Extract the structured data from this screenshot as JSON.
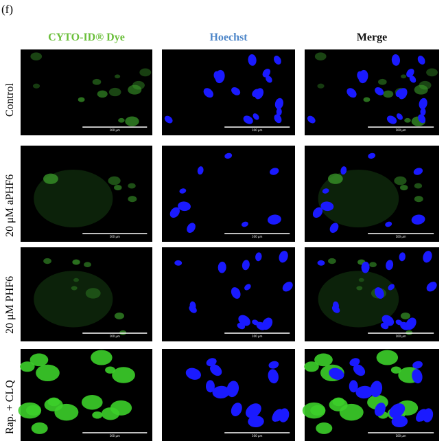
{
  "panel_label": "(f)",
  "columns": [
    "CYTO-ID® Dye",
    "Hoechst",
    "Merge"
  ],
  "rows": [
    "Control",
    "20 μM aPHF6",
    "20 μM PHF6",
    "Rap. + CLQ"
  ],
  "scale_bar": "100 μm"
}
